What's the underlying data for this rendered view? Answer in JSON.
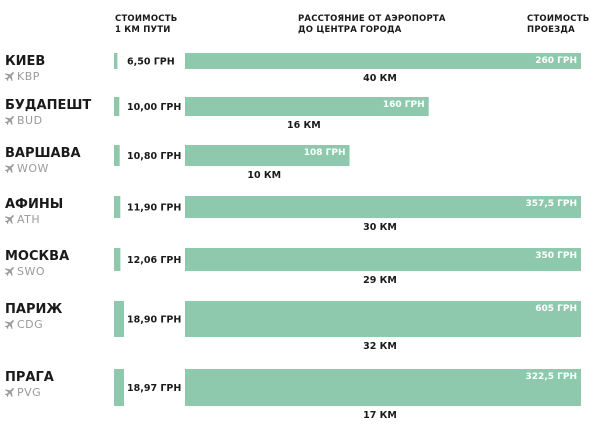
{
  "headers": {
    "cost_per_km": [
      "СТОИМОСТЬ",
      "1 КМ ПУТИ"
    ],
    "distance": [
      "РАССТОЯНИЕ ОТ АЭРОПОРТА",
      "ДО ЦЕНТРА ГОРОДА"
    ],
    "fare": [
      "СТОИМОСТЬ",
      "ПРОЕЗДА"
    ]
  },
  "colors": {
    "bar": "#8ec9ae",
    "airport_code": "#9a9a9a",
    "text": "#1a1a1a"
  },
  "icons": {
    "airport": "airplane-icon"
  },
  "chart_data": {
    "type": "bar",
    "orientation": "horizontal",
    "fare_axis_max": 260,
    "cost_axis_max": 18.97,
    "rows": [
      {
        "city": "КИЕВ",
        "code": "KBP",
        "cost_per_km": 6.5,
        "cost_label": "6,50 ГРН",
        "fare": 260,
        "fare_label": "260 ГРН",
        "distance_label": "40 КМ"
      },
      {
        "city": "БУДАПЕШТ",
        "code": "BUD",
        "cost_per_km": 10.0,
        "cost_label": "10,00 ГРН",
        "fare": 160,
        "fare_label": "160 ГРН",
        "distance_label": "16 КМ"
      },
      {
        "city": "ВАРШАВА",
        "code": "WOW",
        "cost_per_km": 10.8,
        "cost_label": "10,80 ГРН",
        "fare": 108,
        "fare_label": "108 ГРН",
        "distance_label": "10 КМ"
      },
      {
        "city": "АФИНЫ",
        "code": "ATH",
        "cost_per_km": 11.9,
        "cost_label": "11,90 ГРН",
        "fare": 357.5,
        "fare_label": "357,5 ГРН",
        "distance_label": "30 КМ"
      },
      {
        "city": "МОСКВА",
        "code": "SWO",
        "cost_per_km": 12.06,
        "cost_label": "12,06 ГРН",
        "fare": 350,
        "fare_label": "350 ГРН",
        "distance_label": "29 КМ"
      },
      {
        "city": "ПАРИЖ",
        "code": "CDG",
        "cost_per_km": 18.9,
        "cost_label": "18,90 ГРН",
        "fare": 605,
        "fare_label": "605 ГРН",
        "distance_label": "32 КМ"
      },
      {
        "city": "ПРАГА",
        "code": "PVG",
        "cost_per_km": 18.97,
        "cost_label": "18,97 ГРН",
        "fare": 322.5,
        "fare_label": "322,5 ГРН",
        "distance_label": "17 КМ"
      }
    ]
  }
}
